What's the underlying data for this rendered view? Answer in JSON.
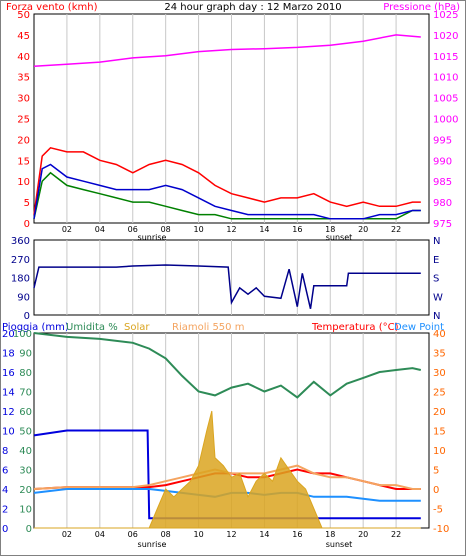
{
  "header": {
    "left_title": "Forza vento (kmh)",
    "center_title": "24 hour graph day : 12 Marzo 2010",
    "right_title": "Pressione (hPa)"
  },
  "chart_data": [
    {
      "type": "line",
      "panel": "wind-pressure",
      "x_ticks": [
        "02",
        "04",
        "06",
        "08",
        "10",
        "12",
        "14",
        "16",
        "18",
        "20",
        "22"
      ],
      "x_annotations": {
        "sunrise": "sunrise",
        "sunset": "sunset"
      },
      "y_left": {
        "label": "Forza vento (kmh)",
        "ticks": [
          0,
          5,
          10,
          15,
          20,
          25,
          30,
          35,
          40,
          45,
          50
        ],
        "range": [
          0,
          50
        ]
      },
      "y_right": {
        "label": "Pressione (hPa)",
        "ticks": [
          975,
          980,
          985,
          990,
          995,
          1000,
          1005,
          1010,
          1015,
          1020,
          1025
        ],
        "range": [
          975,
          1025
        ]
      },
      "series": [
        {
          "axis": "right",
          "color": "#ff00ff",
          "x": [
            0,
            2,
            4,
            6,
            8,
            10,
            12,
            14,
            16,
            18,
            20,
            22,
            23.5
          ],
          "values": [
            1012.5,
            1013,
            1013.5,
            1014.5,
            1015,
            1016,
            1016.5,
            1016.7,
            1017,
            1017.5,
            1018.5,
            1020,
            1019.5
          ]
        },
        {
          "axis": "left",
          "color": "#ff0000",
          "x": [
            0,
            0.5,
            1,
            2,
            3,
            4,
            5,
            6,
            7,
            8,
            9,
            10,
            11,
            12,
            13,
            14,
            15,
            16,
            17,
            18,
            19,
            20,
            21,
            22,
            23,
            23.5
          ],
          "values": [
            2,
            16,
            18,
            17,
            17,
            15,
            14,
            12,
            14,
            15,
            14,
            12,
            9,
            7,
            6,
            5,
            6,
            6,
            7,
            5,
            4,
            5,
            4,
            4,
            5,
            5
          ]
        },
        {
          "axis": "left",
          "color": "#008000",
          "x": [
            0,
            0.5,
            1,
            2,
            3,
            4,
            5,
            6,
            7,
            8,
            9,
            10,
            11,
            12,
            13,
            14,
            15,
            16,
            17,
            18,
            19,
            20,
            21,
            22,
            23,
            23.5
          ],
          "values": [
            1,
            10,
            12,
            9,
            8,
            7,
            6,
            5,
            5,
            4,
            3,
            2,
            2,
            1,
            1,
            1,
            1,
            1,
            1,
            1,
            1,
            1,
            1,
            1,
            3,
            3
          ]
        },
        {
          "axis": "left",
          "color": "#0000cc",
          "x": [
            0,
            0.5,
            1,
            2,
            3,
            4,
            5,
            6,
            7,
            8,
            9,
            10,
            11,
            12,
            13,
            14,
            15,
            16,
            17,
            18,
            19,
            20,
            21,
            22,
            23,
            23.5
          ],
          "values": [
            1,
            13,
            14,
            11,
            10,
            9,
            8,
            8,
            8,
            9,
            8,
            6,
            4,
            3,
            2,
            2,
            2,
            2,
            2,
            1,
            1,
            1,
            2,
            2,
            3,
            3
          ]
        }
      ]
    },
    {
      "type": "line",
      "panel": "wind-direction",
      "x_ticks": [
        "02",
        "04",
        "06",
        "08",
        "10",
        "12",
        "14",
        "16",
        "18",
        "20",
        "22"
      ],
      "y_left": {
        "ticks": [
          0,
          90,
          180,
          270,
          360
        ],
        "range": [
          0,
          360
        ]
      },
      "y_right": {
        "ticks": [
          "N",
          "W",
          "S",
          "E",
          "N"
        ]
      },
      "series": [
        {
          "color": "#00008b",
          "x": [
            0,
            0.3,
            0.5,
            5,
            6,
            8,
            10,
            11.8,
            12,
            12.5,
            13,
            13.5,
            14,
            15,
            15.5,
            16,
            16.3,
            16.8,
            17,
            19,
            19.1,
            23.5
          ],
          "values": [
            130,
            230,
            230,
            230,
            235,
            240,
            235,
            230,
            60,
            130,
            100,
            130,
            90,
            80,
            220,
            40,
            200,
            30,
            140,
            140,
            200,
            200
          ]
        }
      ]
    },
    {
      "type": "area",
      "panel": "rain-humidity-solar-temperature",
      "legend": [
        "Pioggia (mm)",
        "Umidita %",
        "Solar",
        "Riamoli 550 m",
        "Temperatura (°C)",
        "Dew Point"
      ],
      "x_ticks": [
        "02",
        "04",
        "06",
        "08",
        "10",
        "12",
        "14",
        "16",
        "18",
        "20",
        "22"
      ],
      "x_annotations": {
        "sunrise": "sunrise",
        "sunset": "sunset"
      },
      "y_left_rain": {
        "label": "Pioggia (mm)",
        "ticks": [
          0,
          2,
          4,
          6,
          8,
          10,
          12,
          14,
          16,
          18,
          20
        ]
      },
      "y_left_humidity": {
        "label": "Umidita %",
        "ticks": [
          0,
          10,
          20,
          30,
          40,
          50,
          60,
          70,
          80,
          90,
          100
        ]
      },
      "y_right": {
        "label": "Temperatura (°C)",
        "ticks": [
          -10,
          -5,
          0,
          5,
          10,
          15,
          20,
          25,
          30,
          35,
          40
        ],
        "range": [
          -10,
          40
        ]
      },
      "series": [
        {
          "name": "Umidita %",
          "color": "#2e8b57",
          "x": [
            0,
            2,
            4,
            6,
            7,
            8,
            9,
            10,
            11,
            12,
            13,
            14,
            15,
            16,
            17,
            18,
            19,
            20,
            21,
            22,
            23,
            23.5
          ],
          "values": [
            100,
            98,
            97,
            95,
            92,
            87,
            78,
            70,
            68,
            72,
            74,
            70,
            73,
            67,
            75,
            68,
            74,
            77,
            80,
            81,
            82,
            81
          ]
        },
        {
          "name": "Pioggia (mm)",
          "color": "#0000dd",
          "x": [
            0,
            2,
            4,
            6,
            6.9,
            7,
            23.5
          ],
          "values": [
            9.5,
            10,
            10,
            10,
            10,
            1,
            1
          ]
        },
        {
          "name": "Temperatura (°C)",
          "color": "#ff0000",
          "x": [
            0,
            2,
            4,
            6,
            7,
            8,
            9,
            10,
            11,
            12,
            13,
            14,
            15,
            16,
            17,
            18,
            19,
            20,
            21,
            22,
            23,
            23.5
          ],
          "values": [
            0,
            0.5,
            0.5,
            0.5,
            0.5,
            1,
            2,
            3,
            4,
            4,
            3,
            3,
            4,
            5,
            4,
            4,
            3,
            2,
            1,
            0,
            0,
            0
          ]
        },
        {
          "name": "Riamoli 550 m",
          "color": "#f4a460",
          "x": [
            0,
            2,
            4,
            6,
            7,
            8,
            9,
            10,
            11,
            12,
            13,
            14,
            15,
            16,
            17,
            18,
            19,
            20,
            21,
            22,
            23,
            23.5
          ],
          "values": [
            0,
            0.5,
            0.5,
            0.5,
            1,
            2,
            3,
            4,
            5,
            4,
            4,
            4,
            5,
            6,
            4,
            3,
            3,
            2,
            1,
            1,
            0,
            0
          ]
        },
        {
          "name": "Dew Point",
          "color": "#1e90ff",
          "x": [
            0,
            2,
            4,
            6,
            7,
            8,
            9,
            10,
            11,
            12,
            13,
            14,
            15,
            16,
            17,
            18,
            19,
            20,
            21,
            22,
            23,
            23.5
          ],
          "values": [
            -1,
            0,
            0,
            0,
            0,
            -0.5,
            -1,
            -1.5,
            -2,
            -1,
            -1,
            -1.5,
            -1,
            -1,
            -2,
            -2,
            -2,
            -2.5,
            -3,
            -3,
            -3,
            -3
          ]
        },
        {
          "name": "Solar",
          "color": "#daa520",
          "x": [
            0,
            7,
            7.5,
            8,
            8.5,
            9,
            9.5,
            10,
            10.5,
            10.8,
            11,
            11.5,
            12,
            12.5,
            13,
            13.5,
            14,
            14.5,
            15,
            15.5,
            16,
            16.5,
            17,
            17.5,
            23.5
          ],
          "values": [
            -10,
            -10,
            -5,
            0,
            -2,
            0,
            2,
            6,
            15,
            20,
            8,
            6,
            3,
            4,
            -2,
            2,
            4,
            2,
            8,
            5,
            2,
            0,
            -5,
            -10,
            -10
          ]
        }
      ]
    }
  ]
}
